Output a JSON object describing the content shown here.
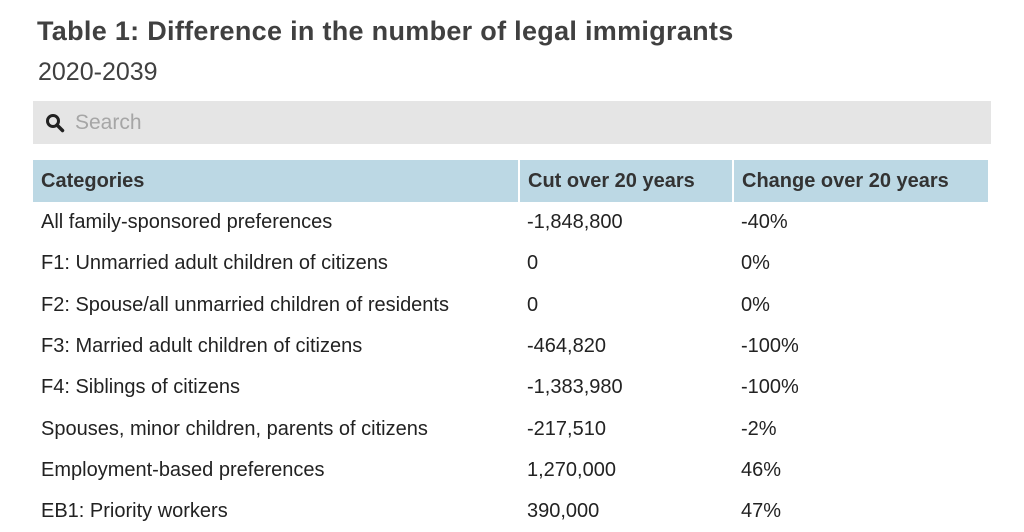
{
  "title": "Table 1: Difference in the number of legal immigrants",
  "subtitle": "2020-2039",
  "search": {
    "placeholder": "Search",
    "icon": "search-icon"
  },
  "colors": {
    "header_bg": "#bcd8e4",
    "search_bg": "#e5e5e5"
  },
  "chart_data": {
    "type": "table",
    "columns": [
      "Categories",
      "Cut over 20 years",
      "Change over 20 years"
    ],
    "rows": [
      [
        "All family-sponsored preferences",
        "-1,848,800",
        "-40%"
      ],
      [
        "F1: Unmarried adult children of citizens",
        "0",
        "0%"
      ],
      [
        "F2: Spouse/all unmarried children of residents",
        "0",
        "0%"
      ],
      [
        "F3: Married adult children of citizens",
        "-464,820",
        "-100%"
      ],
      [
        "F4: Siblings of citizens",
        "-1,383,980",
        "-100%"
      ],
      [
        "Spouses, minor children, parents of citizens",
        "-217,510",
        "-2%"
      ],
      [
        "Employment-based preferences",
        "1,270,000",
        "46%"
      ],
      [
        "EB1: Priority workers",
        "390,000",
        "47%"
      ]
    ]
  }
}
